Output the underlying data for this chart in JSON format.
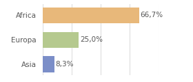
{
  "categories": [
    "Asia",
    "Europa",
    "Africa"
  ],
  "values": [
    8.3,
    25.0,
    66.7
  ],
  "labels": [
    "8,3%",
    "25,0%",
    "66,7%"
  ],
  "bar_colors": [
    "#7b8ec8",
    "#b5c98e",
    "#e8b87a"
  ],
  "background_color": "#ffffff",
  "xlim": [
    0,
    80
  ],
  "label_fontsize": 7.5,
  "tick_fontsize": 7.5,
  "grid_color": "#dddddd",
  "label_color": "#555555",
  "tick_color": "#555555"
}
